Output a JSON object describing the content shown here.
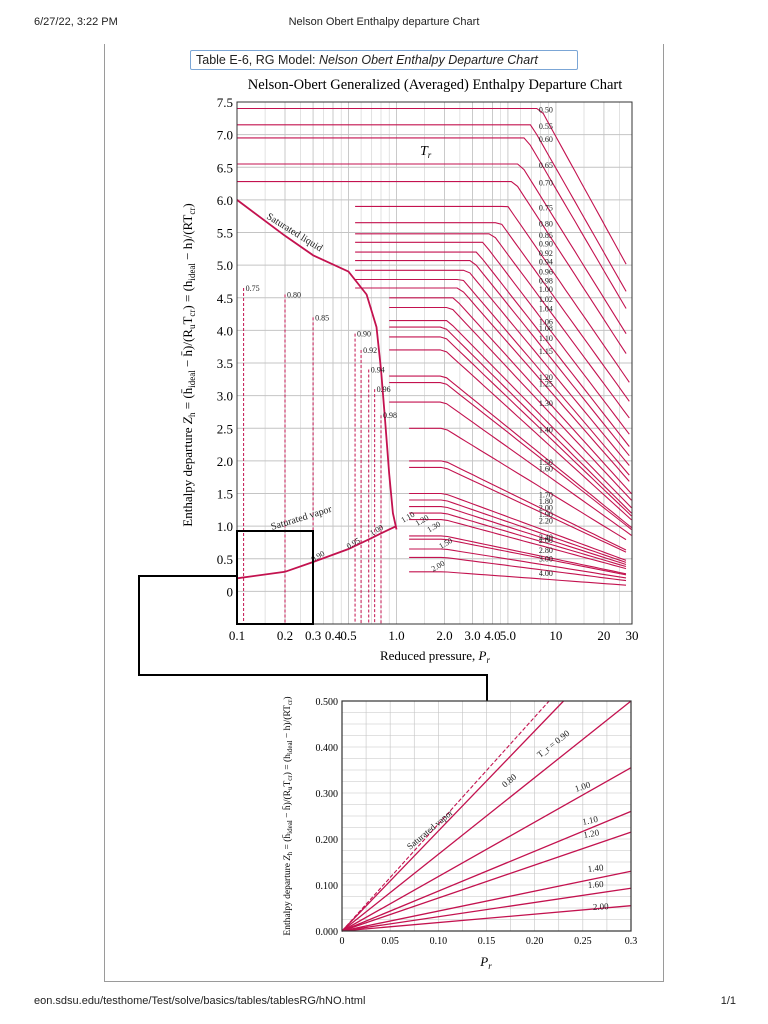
{
  "header": {
    "date": "6/27/22, 3:22 PM",
    "title": "Nelson Obert Enthalpy departure Chart"
  },
  "caption": {
    "prefix": "Table E-6, RG Model: ",
    "title": "Nelson Obert Enthalpy Departure Chart"
  },
  "footer": {
    "url": "eon.sdsu.edu/testhome/Test/solve/basics/tables/tablesRG/hNO.html",
    "page": "1/1"
  },
  "colors": {
    "curve": "#c3124f",
    "grid": "#c4c4c4",
    "axis": "#333333"
  },
  "chart_data": [
    {
      "type": "line",
      "title": "Nelson-Obert Generalized (Averaged) Enthalpy Departure Chart",
      "xlabel": "Reduced pressure, P_r",
      "ylabel": "Enthalpy departure Z_h = (h̄ideal − h̄)/(R_u T_cr) = (hideal − h)/(R T_cr)",
      "x_scale": "log",
      "xlim": [
        0.1,
        30
      ],
      "ylim": [
        -0.5,
        7.5
      ],
      "x_ticks": [
        "0.1",
        "0.2",
        "0.3",
        "0.4",
        "0.5",
        "1.0",
        "2.0",
        "3.0",
        "4.0",
        "5.0",
        "10",
        "20",
        "30"
      ],
      "y_ticks": [
        "0",
        "0.5",
        "1.0",
        "1.5",
        "2.0",
        "2.5",
        "3.0",
        "3.5",
        "4.0",
        "4.5",
        "5.0",
        "5.5",
        "6.0",
        "6.5",
        "7.0",
        "7.5"
      ],
      "family_label": "T_r",
      "annotations": [
        "Saturated liquid",
        "Saturated vapor"
      ],
      "gas_isotherms": [
        {
          "Tr": "0.50",
          "y": 7.4,
          "pd": 8
        },
        {
          "Tr": "0.55",
          "y": 7.15,
          "pd": 7
        },
        {
          "Tr": "0.60",
          "y": 6.95,
          "pd": 6.5
        },
        {
          "Tr": "0.65",
          "y": 6.55,
          "pd": 6
        },
        {
          "Tr": "0.70",
          "y": 6.28,
          "pd": 5.5
        },
        {
          "Tr": "0.75",
          "y": 5.9,
          "pd": 5
        },
        {
          "Tr": "0.80",
          "y": 5.65,
          "pd": 4.5
        },
        {
          "Tr": "0.85",
          "y": 5.48,
          "pd": 4
        },
        {
          "Tr": "0.90",
          "y": 5.35,
          "pd": 3.5
        },
        {
          "Tr": "0.92",
          "y": 5.2,
          "pd": 3.2
        },
        {
          "Tr": "0.94",
          "y": 5.07,
          "pd": 3
        },
        {
          "Tr": "0.96",
          "y": 4.92,
          "pd": 2.8
        },
        {
          "Tr": "0.98",
          "y": 4.78,
          "pd": 2.6
        },
        {
          "Tr": "1.00",
          "y": 4.65,
          "pd": 2.5
        },
        {
          "Tr": "1.02",
          "y": 4.5,
          "pd": 2.3
        },
        {
          "Tr": "1.04",
          "y": 4.35,
          "pd": 2.2
        },
        {
          "Tr": "1.06",
          "y": 4.15,
          "pd": 2.1
        },
        {
          "Tr": "1.08",
          "y": 4.05,
          "pd": 2
        },
        {
          "Tr": "1.10",
          "y": 3.9,
          "pd": 2
        },
        {
          "Tr": "1.15",
          "y": 3.7,
          "pd": 2
        },
        {
          "Tr": "1.20",
          "y": 3.3,
          "pd": 2
        },
        {
          "Tr": "1.25",
          "y": 3.2,
          "pd": 2
        },
        {
          "Tr": "1.30",
          "y": 2.9,
          "pd": 2
        },
        {
          "Tr": "1.40",
          "y": 2.5,
          "pd": 2
        },
        {
          "Tr": "1.50",
          "y": 2.0,
          "pd": 2
        },
        {
          "Tr": "1.60",
          "y": 1.9,
          "pd": 2
        },
        {
          "Tr": "1.70",
          "y": 1.5,
          "pd": 2
        },
        {
          "Tr": "1.80",
          "y": 1.4,
          "pd": 2
        },
        {
          "Tr": "1.90",
          "y": 1.2,
          "pd": 2
        },
        {
          "Tr": "2.00",
          "y": 1.3,
          "pd": 2
        },
        {
          "Tr": "2.20",
          "y": 1.1,
          "pd": 2
        },
        {
          "Tr": "2.40",
          "y": 0.85,
          "pd": 2
        },
        {
          "Tr": "2.60",
          "y": 0.8,
          "pd": 2
        },
        {
          "Tr": "2.80",
          "y": 0.65,
          "pd": 2
        },
        {
          "Tr": "3.00",
          "y": 0.52,
          "pd": 2
        },
        {
          "Tr": "4.00",
          "y": 0.3,
          "pd": 2
        }
      ],
      "liquid_marks": [
        {
          "Tr": "0.75",
          "pr": 0.11,
          "y": 4.65
        },
        {
          "Tr": "0.80",
          "pr": 0.2,
          "y": 4.55
        },
        {
          "Tr": "0.85",
          "pr": 0.3,
          "y": 4.2
        },
        {
          "Tr": "0.90",
          "pr": 0.55,
          "y": 3.95
        },
        {
          "Tr": "0.92",
          "pr": 0.6,
          "y": 3.7
        },
        {
          "Tr": "0.94",
          "pr": 0.67,
          "y": 3.4
        },
        {
          "Tr": "0.96",
          "pr": 0.73,
          "y": 3.1
        },
        {
          "Tr": "0.98",
          "pr": 0.8,
          "y": 2.7
        }
      ],
      "vapor_labels": [
        {
          "Tr": "0.90",
          "pr": 0.3,
          "y": 0.45
        },
        {
          "Tr": "0.95",
          "pr": 0.5,
          "y": 0.65
        },
        {
          "Tr": "1.00",
          "pr": 0.7,
          "y": 0.85
        },
        {
          "Tr": "1.10",
          "pr": 1.1,
          "y": 1.05
        },
        {
          "Tr": "1.20",
          "pr": 1.35,
          "y": 1.0
        },
        {
          "Tr": "1.30",
          "pr": 1.6,
          "y": 0.9
        },
        {
          "Tr": "1.50",
          "pr": 1.9,
          "y": 0.65
        },
        {
          "Tr": "2.00",
          "pr": 1.7,
          "y": 0.3
        }
      ]
    },
    {
      "type": "line",
      "xlabel": "P_r",
      "ylabel": "Enthalpy departure Z_h = (h̄ideal − h̄)/(R_u T_cr) = (hideal − h)/(R T_cr)",
      "xlim": [
        0,
        0.3
      ],
      "ylim": [
        0,
        0.5
      ],
      "x_ticks": [
        "0",
        "0.05",
        "0.10",
        "0.15",
        "0.20",
        "0.25",
        "0.3"
      ],
      "y_ticks": [
        "0.000",
        "0.100",
        "0.200",
        "0.300",
        "0.400",
        "0.500"
      ],
      "series": [
        {
          "name": "T_r = 0.90",
          "x": [
            0,
            0.3
          ],
          "y": [
            0,
            0.5
          ]
        },
        {
          "name": "0.80",
          "x": [
            0,
            0.23
          ],
          "y": [
            0,
            0.5
          ]
        },
        {
          "name": "1.00",
          "x": [
            0,
            0.3
          ],
          "y": [
            0,
            0.355
          ]
        },
        {
          "name": "1.10",
          "x": [
            0,
            0.3
          ],
          "y": [
            0,
            0.26
          ]
        },
        {
          "name": "1.20",
          "x": [
            0,
            0.3
          ],
          "y": [
            0,
            0.215
          ]
        },
        {
          "name": "1.40",
          "x": [
            0,
            0.3
          ],
          "y": [
            0,
            0.13
          ]
        },
        {
          "name": "1.60",
          "x": [
            0,
            0.3
          ],
          "y": [
            0,
            0.093
          ]
        },
        {
          "name": "2.00",
          "x": [
            0,
            0.3
          ],
          "y": [
            0,
            0.055
          ]
        }
      ],
      "annotation": "Saturated vapor"
    }
  ]
}
